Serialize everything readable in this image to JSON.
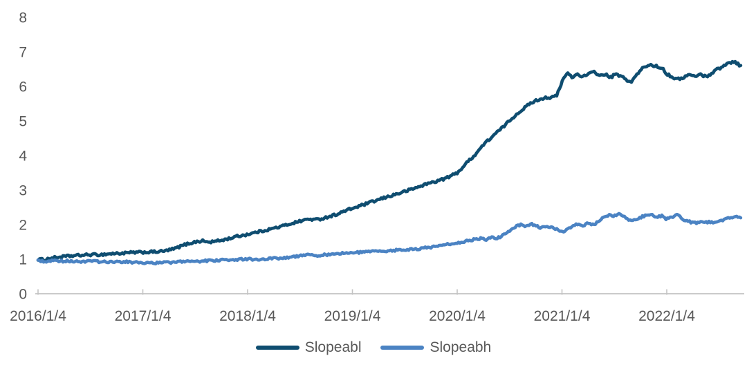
{
  "chart_data": {
    "type": "line",
    "title": "",
    "xlabel": "",
    "ylabel": "",
    "grid": false,
    "legend_position": "bottom-center",
    "styles": {
      "axis_color": "#c3c3c3",
      "label_color": "#595959",
      "background": "#ffffff"
    },
    "x_axis": {
      "range": [
        2016.0,
        2022.71
      ],
      "tick_years": [
        2016,
        2017,
        2018,
        2019,
        2020,
        2021,
        2022
      ],
      "tick_labels": [
        "2016/1/4",
        "2017/1/4",
        "2018/1/4",
        "2019/1/4",
        "2020/1/4",
        "2021/1/4",
        "2022/1/4"
      ]
    },
    "y_axis": {
      "range": [
        0,
        8
      ],
      "ticks": [
        0,
        1,
        2,
        3,
        4,
        5,
        6,
        7,
        8
      ],
      "tick_labels": [
        "0",
        "1",
        "2",
        "3",
        "4",
        "5",
        "6",
        "7",
        "8"
      ]
    },
    "series": [
      {
        "name": "Slopeabl",
        "color": "#0f4d70",
        "jitter": 0.034,
        "points": [
          [
            2016.0,
            1.0
          ],
          [
            2016.06,
            0.98
          ],
          [
            2016.12,
            1.03
          ],
          [
            2016.2,
            1.06
          ],
          [
            2016.3,
            1.09
          ],
          [
            2016.4,
            1.11
          ],
          [
            2016.5,
            1.13
          ],
          [
            2016.6,
            1.13
          ],
          [
            2016.7,
            1.16
          ],
          [
            2016.8,
            1.17
          ],
          [
            2016.9,
            1.19
          ],
          [
            2017.0,
            1.2
          ],
          [
            2017.1,
            1.21
          ],
          [
            2017.2,
            1.23
          ],
          [
            2017.3,
            1.3
          ],
          [
            2017.4,
            1.42
          ],
          [
            2017.5,
            1.5
          ],
          [
            2017.57,
            1.53
          ],
          [
            2017.63,
            1.49
          ],
          [
            2017.72,
            1.53
          ],
          [
            2017.8,
            1.58
          ],
          [
            2017.9,
            1.66
          ],
          [
            2018.0,
            1.72
          ],
          [
            2018.1,
            1.79
          ],
          [
            2018.2,
            1.86
          ],
          [
            2018.3,
            1.93
          ],
          [
            2018.4,
            2.02
          ],
          [
            2018.5,
            2.1
          ],
          [
            2018.58,
            2.16
          ],
          [
            2018.66,
            2.14
          ],
          [
            2018.75,
            2.21
          ],
          [
            2018.85,
            2.3
          ],
          [
            2018.95,
            2.42
          ],
          [
            2019.05,
            2.52
          ],
          [
            2019.15,
            2.62
          ],
          [
            2019.25,
            2.72
          ],
          [
            2019.35,
            2.82
          ],
          [
            2019.45,
            2.91
          ],
          [
            2019.55,
            3.01
          ],
          [
            2019.62,
            3.08
          ],
          [
            2019.7,
            3.17
          ],
          [
            2019.78,
            3.24
          ],
          [
            2019.85,
            3.3
          ],
          [
            2019.92,
            3.38
          ],
          [
            2020.0,
            3.5
          ],
          [
            2020.06,
            3.68
          ],
          [
            2020.12,
            3.88
          ],
          [
            2020.18,
            4.05
          ],
          [
            2020.24,
            4.28
          ],
          [
            2020.3,
            4.45
          ],
          [
            2020.36,
            4.62
          ],
          [
            2020.42,
            4.77
          ],
          [
            2020.48,
            4.95
          ],
          [
            2020.54,
            5.12
          ],
          [
            2020.6,
            5.28
          ],
          [
            2020.66,
            5.42
          ],
          [
            2020.72,
            5.55
          ],
          [
            2020.78,
            5.62
          ],
          [
            2020.84,
            5.68
          ],
          [
            2020.9,
            5.67
          ],
          [
            2020.95,
            5.74
          ],
          [
            2020.98,
            5.95
          ],
          [
            2021.02,
            6.28
          ],
          [
            2021.06,
            6.38
          ],
          [
            2021.1,
            6.26
          ],
          [
            2021.15,
            6.36
          ],
          [
            2021.2,
            6.28
          ],
          [
            2021.26,
            6.36
          ],
          [
            2021.31,
            6.43
          ],
          [
            2021.36,
            6.3
          ],
          [
            2021.41,
            6.36
          ],
          [
            2021.46,
            6.25
          ],
          [
            2021.51,
            6.35
          ],
          [
            2021.56,
            6.3
          ],
          [
            2021.61,
            6.2
          ],
          [
            2021.66,
            6.12
          ],
          [
            2021.71,
            6.32
          ],
          [
            2021.76,
            6.5
          ],
          [
            2021.81,
            6.6
          ],
          [
            2021.86,
            6.62
          ],
          [
            2021.91,
            6.57
          ],
          [
            2021.96,
            6.53
          ],
          [
            2022.0,
            6.36
          ],
          [
            2022.05,
            6.28
          ],
          [
            2022.1,
            6.2
          ],
          [
            2022.16,
            6.26
          ],
          [
            2022.21,
            6.34
          ],
          [
            2022.26,
            6.29
          ],
          [
            2022.32,
            6.35
          ],
          [
            2022.37,
            6.28
          ],
          [
            2022.42,
            6.36
          ],
          [
            2022.47,
            6.48
          ],
          [
            2022.52,
            6.55
          ],
          [
            2022.58,
            6.66
          ],
          [
            2022.63,
            6.72
          ],
          [
            2022.67,
            6.68
          ],
          [
            2022.71,
            6.57
          ]
        ]
      },
      {
        "name": "Slopeabh",
        "color": "#4b83c3",
        "jitter": 0.03,
        "points": [
          [
            2016.0,
            0.97
          ],
          [
            2016.06,
            0.93
          ],
          [
            2016.12,
            0.96
          ],
          [
            2016.2,
            0.94
          ],
          [
            2016.3,
            0.95
          ],
          [
            2016.4,
            0.93
          ],
          [
            2016.5,
            0.94
          ],
          [
            2016.6,
            0.92
          ],
          [
            2016.7,
            0.92
          ],
          [
            2016.8,
            0.93
          ],
          [
            2016.9,
            0.91
          ],
          [
            2017.0,
            0.9
          ],
          [
            2017.1,
            0.89
          ],
          [
            2017.2,
            0.9
          ],
          [
            2017.3,
            0.91
          ],
          [
            2017.4,
            0.93
          ],
          [
            2017.5,
            0.94
          ],
          [
            2017.6,
            0.95
          ],
          [
            2017.7,
            0.97
          ],
          [
            2017.8,
            0.98
          ],
          [
            2017.9,
            0.99
          ],
          [
            2018.0,
            1.0
          ],
          [
            2018.1,
            1.0
          ],
          [
            2018.2,
            1.01
          ],
          [
            2018.3,
            1.03
          ],
          [
            2018.4,
            1.06
          ],
          [
            2018.5,
            1.1
          ],
          [
            2018.58,
            1.14
          ],
          [
            2018.66,
            1.1
          ],
          [
            2018.75,
            1.13
          ],
          [
            2018.85,
            1.16
          ],
          [
            2018.95,
            1.18
          ],
          [
            2019.05,
            1.19
          ],
          [
            2019.15,
            1.21
          ],
          [
            2019.25,
            1.23
          ],
          [
            2019.35,
            1.25
          ],
          [
            2019.45,
            1.26
          ],
          [
            2019.55,
            1.28
          ],
          [
            2019.65,
            1.31
          ],
          [
            2019.75,
            1.35
          ],
          [
            2019.85,
            1.4
          ],
          [
            2019.95,
            1.45
          ],
          [
            2020.05,
            1.5
          ],
          [
            2020.12,
            1.54
          ],
          [
            2020.18,
            1.58
          ],
          [
            2020.24,
            1.61
          ],
          [
            2020.28,
            1.57
          ],
          [
            2020.33,
            1.63
          ],
          [
            2020.38,
            1.6
          ],
          [
            2020.44,
            1.7
          ],
          [
            2020.5,
            1.82
          ],
          [
            2020.55,
            1.92
          ],
          [
            2020.6,
            2.0
          ],
          [
            2020.65,
            1.95
          ],
          [
            2020.7,
            2.02
          ],
          [
            2020.75,
            1.98
          ],
          [
            2020.8,
            1.89
          ],
          [
            2020.85,
            1.96
          ],
          [
            2020.9,
            1.91
          ],
          [
            2020.95,
            1.86
          ],
          [
            2021.0,
            1.79
          ],
          [
            2021.05,
            1.86
          ],
          [
            2021.1,
            1.95
          ],
          [
            2021.15,
            2.02
          ],
          [
            2021.2,
            1.96
          ],
          [
            2021.25,
            2.05
          ],
          [
            2021.3,
            1.99
          ],
          [
            2021.35,
            2.1
          ],
          [
            2021.4,
            2.2
          ],
          [
            2021.45,
            2.28
          ],
          [
            2021.5,
            2.25
          ],
          [
            2021.55,
            2.3
          ],
          [
            2021.6,
            2.21
          ],
          [
            2021.65,
            2.12
          ],
          [
            2021.7,
            2.16
          ],
          [
            2021.75,
            2.21
          ],
          [
            2021.8,
            2.27
          ],
          [
            2021.85,
            2.3
          ],
          [
            2021.9,
            2.21
          ],
          [
            2021.95,
            2.26
          ],
          [
            2022.0,
            2.16
          ],
          [
            2022.05,
            2.21
          ],
          [
            2022.1,
            2.27
          ],
          [
            2022.15,
            2.17
          ],
          [
            2022.2,
            2.1
          ],
          [
            2022.26,
            2.05
          ],
          [
            2022.32,
            2.06
          ],
          [
            2022.38,
            2.08
          ],
          [
            2022.44,
            2.05
          ],
          [
            2022.5,
            2.1
          ],
          [
            2022.56,
            2.15
          ],
          [
            2022.62,
            2.21
          ],
          [
            2022.66,
            2.25
          ],
          [
            2022.71,
            2.22
          ]
        ]
      }
    ]
  }
}
